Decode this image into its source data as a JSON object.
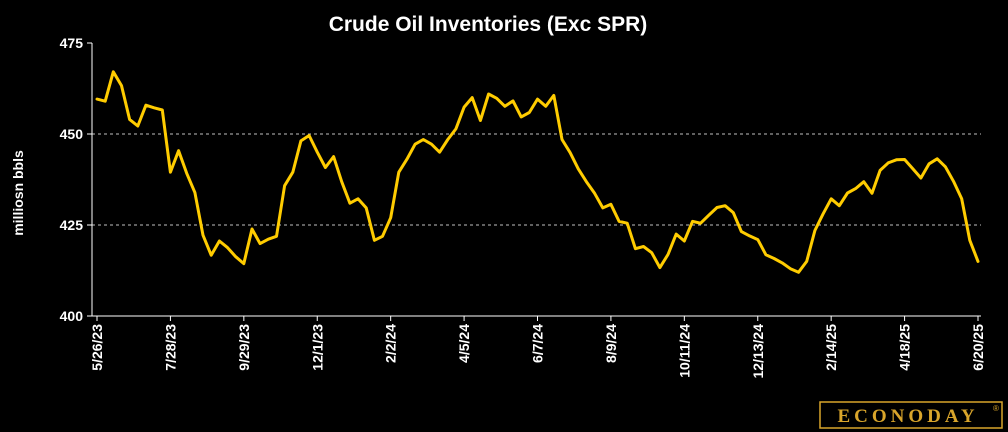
{
  "chart_data": {
    "type": "line",
    "title": "Crude Oil Inventories (Exc SPR)",
    "ylabel": "milliosn bbls",
    "xlabel": "",
    "ylim": [
      400,
      475
    ],
    "yticks": [
      400,
      425,
      450,
      475
    ],
    "grid_values": [
      425,
      450
    ],
    "xtick_labels": [
      "5/26/23",
      "7/28/23",
      "9/29/23",
      "12/1/23",
      "2/2/24",
      "4/5/24",
      "6/7/24",
      "8/9/24",
      "10/11/24",
      "12/13/24",
      "2/14/25",
      "4/18/25",
      "6/20/25"
    ],
    "line_color": "#ffcc00",
    "series": [
      {
        "values": [
          459.6,
          459.0,
          467.1,
          463.3,
          454.0,
          452.2,
          457.9,
          457.2,
          456.6,
          439.5,
          445.4,
          439.2,
          433.9,
          422.2,
          416.7,
          420.6,
          418.8,
          416.3,
          414.4,
          423.9,
          419.9,
          421.1,
          421.9,
          435.8,
          439.5,
          448.1,
          449.6,
          445.0,
          440.8,
          443.8,
          436.9,
          431.0,
          432.2,
          429.7,
          420.8,
          421.9,
          427.0,
          439.5,
          443.1,
          447.2,
          448.5,
          447.2,
          445.0,
          448.5,
          451.4,
          457.4,
          460.0,
          453.7,
          461.0,
          459.8,
          457.6,
          459.1,
          454.7,
          455.9,
          459.6,
          457.6,
          460.6,
          448.5,
          444.9,
          440.4,
          436.9,
          433.7,
          429.7,
          430.7,
          426.0,
          425.5,
          418.5,
          419.1,
          417.4,
          413.3,
          416.9,
          422.5,
          420.6,
          426.0,
          425.5,
          427.7,
          429.8,
          430.3,
          428.4,
          423.2,
          422.0,
          421.0,
          416.8,
          415.8,
          414.6,
          413.0,
          412.0,
          415.0,
          423.5,
          428.0,
          432.2,
          430.3,
          433.8,
          435.0,
          436.9,
          433.7,
          440.0,
          442.1,
          442.9,
          443.0,
          440.5,
          437.9,
          441.8,
          443.2,
          441.0,
          437.0,
          432.2,
          420.8,
          415.0
        ]
      }
    ]
  },
  "branding": {
    "logo_text": "ECONODAY",
    "logo_mark": "®",
    "logo_color": "#d9a52b"
  }
}
